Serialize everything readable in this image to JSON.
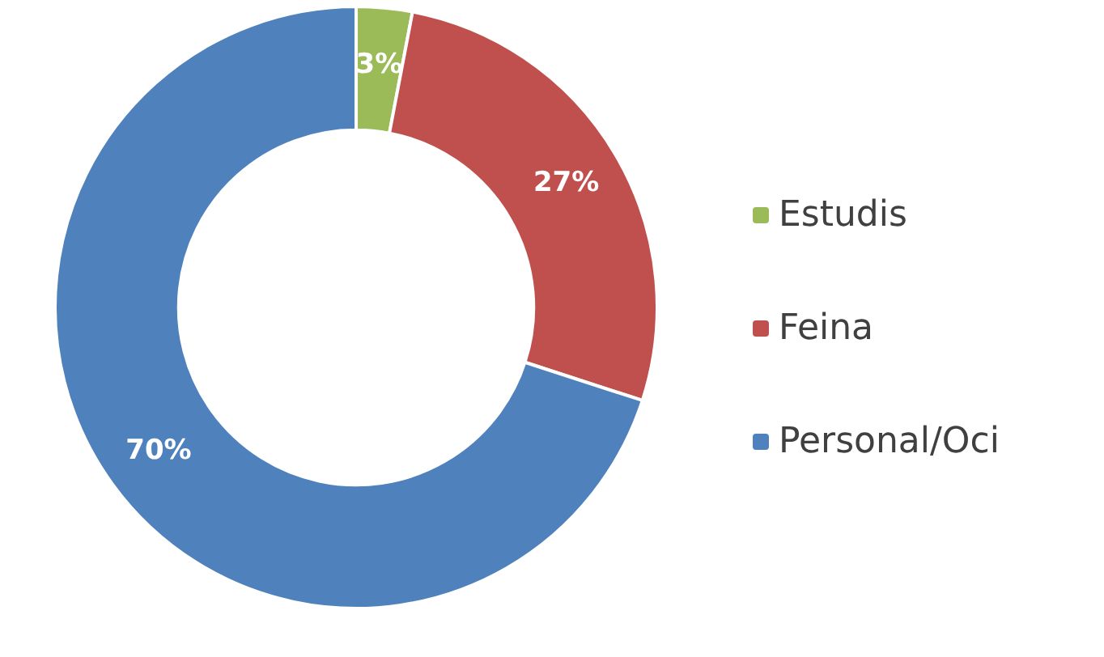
{
  "chart_data": {
    "type": "donut",
    "categories": [
      "Estudis",
      "Feina",
      "Personal/Oci"
    ],
    "values": [
      3,
      27,
      70
    ],
    "colors": [
      "#9bbb59",
      "#c0504d",
      "#4f81bd"
    ],
    "value_labels": [
      "3%",
      "27%",
      "70%"
    ],
    "legend": "right"
  }
}
